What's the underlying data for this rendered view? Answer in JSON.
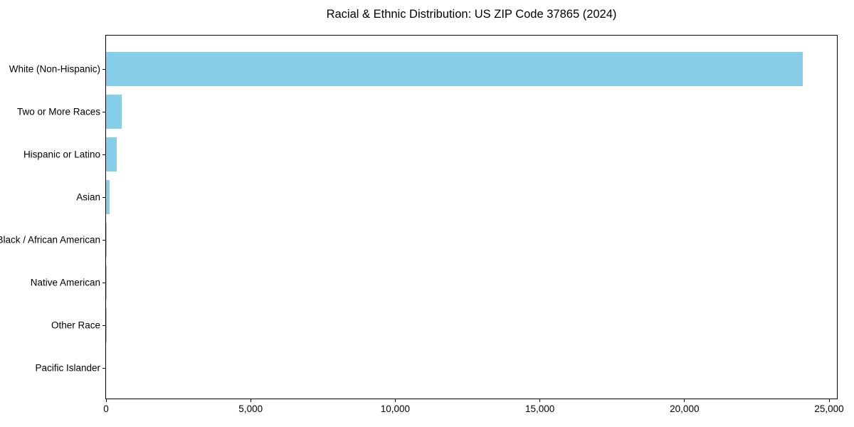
{
  "title": "Racial & Ethnic Distribution: US ZIP Code 37865 (2024)",
  "colors": {
    "bar": "#87CEEB",
    "axis": "#000000",
    "background": "#FFFFFF",
    "text": "#000000"
  },
  "chart_data": {
    "type": "bar",
    "orientation": "horizontal",
    "title": "Racial & Ethnic Distribution: US ZIP Code 37865 (2024)",
    "categories": [
      "White (Non-Hispanic)",
      "Two or More Races",
      "Hispanic or Latino",
      "Asian",
      "Black / African American",
      "Native American",
      "Other Race",
      "Pacific Islander"
    ],
    "values": [
      24090,
      533,
      361,
      115,
      25,
      10,
      4,
      0
    ],
    "bar_color": "#87CEEB",
    "xlabel": "",
    "ylabel": "",
    "xlim": [
      0,
      25270
    ],
    "x_ticks": [
      {
        "value": 0,
        "label": "0"
      },
      {
        "value": 5000,
        "label": "5,000"
      },
      {
        "value": 10000,
        "label": "10,000"
      },
      {
        "value": 15000,
        "label": "15,000"
      },
      {
        "value": 20000,
        "label": "20,000"
      },
      {
        "value": 25000,
        "label": "25,000"
      }
    ],
    "grid": false,
    "legend": false
  }
}
